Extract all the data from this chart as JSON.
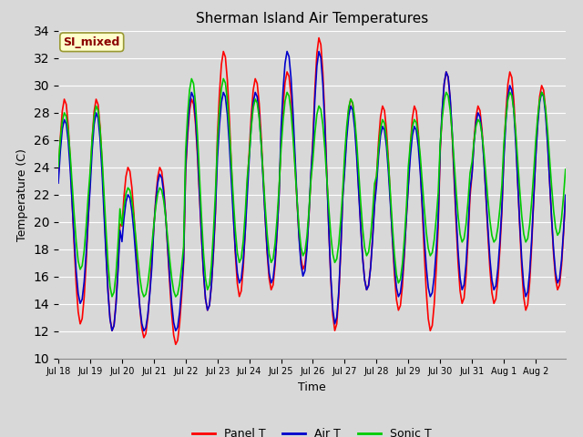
{
  "title": "Sherman Island Air Temperatures",
  "xlabel": "Time",
  "ylabel": "Temperature (C)",
  "ylim": [
    10,
    34
  ],
  "yticks": [
    10,
    12,
    14,
    16,
    18,
    20,
    22,
    24,
    26,
    28,
    30,
    32,
    34
  ],
  "background_color": "#d8d8d8",
  "plot_bg_color": "#d8d8d8",
  "annotation_text": "SI_mixed",
  "annotation_color": "#8b0000",
  "annotation_bg": "#ffffcc",
  "line_colors": {
    "panel": "#ff0000",
    "air": "#0000cc",
    "sonic": "#00cc00"
  },
  "line_width": 1.2,
  "legend_labels": [
    "Panel T",
    "Air T",
    "Sonic T"
  ],
  "x_tick_labels": [
    "Jul 18",
    "Jul 19",
    "Jul 20",
    "Jul 21",
    "Jul 22",
    "Jul 23",
    "Jul 24",
    "Jul 25",
    "Jul 26",
    "Jul 27",
    "Jul 28",
    "Jul 29",
    "Jul 30",
    "Jul 31",
    "Aug 1",
    "Aug 2"
  ],
  "num_points_per_day": 16,
  "days": 16,
  "panel_daily_max": [
    29.0,
    29.0,
    24.0,
    24.0,
    29.0,
    32.5,
    30.5,
    31.0,
    33.5,
    29.0,
    28.5,
    28.5,
    31.0,
    28.5,
    31.0,
    30.0
  ],
  "panel_daily_min": [
    12.5,
    12.0,
    11.5,
    11.0,
    13.5,
    14.5,
    15.0,
    16.5,
    12.0,
    15.0,
    13.5,
    12.0,
    14.0,
    14.0,
    13.5,
    15.0
  ],
  "air_daily_max": [
    27.5,
    28.0,
    22.0,
    23.5,
    29.5,
    29.5,
    29.5,
    32.5,
    32.5,
    28.5,
    27.0,
    27.0,
    31.0,
    28.0,
    30.0,
    29.5
  ],
  "air_daily_min": [
    14.0,
    12.0,
    12.0,
    12.0,
    13.5,
    15.5,
    15.5,
    16.0,
    12.5,
    15.0,
    14.5,
    14.5,
    15.0,
    15.0,
    14.5,
    15.5
  ],
  "sonic_daily_max": [
    28.0,
    28.5,
    22.5,
    22.5,
    30.5,
    30.5,
    29.0,
    29.5,
    28.5,
    29.0,
    27.5,
    27.5,
    29.5,
    27.5,
    29.5,
    29.5
  ],
  "sonic_daily_min": [
    16.5,
    14.5,
    14.5,
    14.5,
    15.0,
    17.0,
    17.0,
    17.5,
    17.0,
    17.5,
    15.5,
    17.5,
    18.5,
    18.5,
    18.5,
    19.0
  ]
}
